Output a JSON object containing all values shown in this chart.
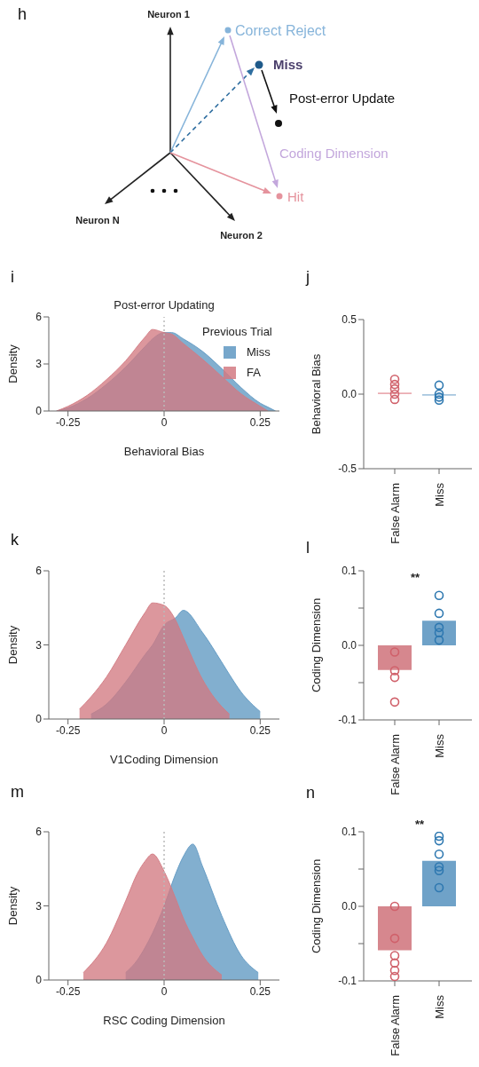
{
  "chart_data": [
    {
      "type": "other",
      "annotations": [
        "h",
        "Neuron 1",
        "Neuron 2",
        "Neuron N",
        "Correct Reject",
        "Miss",
        "Post-error Update",
        "Coding Dimension",
        "Hit"
      ]
    },
    {
      "type": "area",
      "title": "Post-error Updating",
      "xlabel": "Behavioral Bias",
      "ylabel": "Density",
      "legend_title": "Previous Trial",
      "annotations": [
        "i"
      ],
      "legend": "top right",
      "x": [
        -0.28,
        -0.25,
        -0.2,
        -0.15,
        -0.1,
        -0.05,
        -0.03,
        0,
        0.02,
        0.05,
        0.1,
        0.15,
        0.2,
        0.25,
        0.27,
        0.29
      ],
      "series": [
        {
          "name": "Miss",
          "color": "#5f98c2",
          "values": [
            0,
            0.2,
            0.8,
            1.7,
            2.8,
            4.1,
            4.6,
            5.0,
            5.0,
            4.6,
            3.8,
            2.7,
            1.5,
            0.5,
            0.25,
            0
          ]
        },
        {
          "name": "FA",
          "color": "#d27a82",
          "values": [
            0,
            0.3,
            1.0,
            2.0,
            3.2,
            4.7,
            5.2,
            5.0,
            4.9,
            4.3,
            3.3,
            2.2,
            1.1,
            0.3,
            0,
            null
          ]
        }
      ],
      "xlim": [
        -0.3,
        0.3
      ],
      "xticks": [
        -0.25,
        0,
        0.25
      ],
      "ylim": [
        0,
        6
      ],
      "yticks": [
        0,
        3,
        6
      ],
      "ref_lines": [
        {
          "axis": "x",
          "value": 0,
          "color": "#bbbbbb",
          "line_style": "dotted"
        }
      ]
    },
    {
      "type": "bar",
      "ylabel": "Behavioral Bias",
      "annotations": [
        "j"
      ],
      "categories": [
        "False Alarm",
        "Miss"
      ],
      "marker": "circle",
      "series": [
        {
          "type": "bar",
          "colors": [
            "#e8a3aa",
            "#9cc0dc"
          ],
          "values": [
            0.01,
            -0.01
          ]
        },
        {
          "type": "scatter",
          "color": "#d0606a",
          "x": [
            "False Alarm",
            "False Alarm",
            "False Alarm",
            "False Alarm",
            "False Alarm"
          ],
          "values": [
            0.1,
            0.065,
            0.035,
            0,
            -0.035
          ]
        },
        {
          "type": "scatter",
          "color": "#2e78b0",
          "x": [
            "Miss",
            "Miss",
            "Miss",
            "Miss"
          ],
          "values": [
            0.06,
            0,
            -0.02,
            -0.04
          ]
        }
      ],
      "ylim": [
        -0.5,
        0.5
      ],
      "yticks": [
        -0.5,
        {
          "value": 0,
          "label": "0.0"
        },
        0.5
      ]
    },
    {
      "type": "area",
      "xlabel": "V1Coding Dimension",
      "ylabel": "Density",
      "annotations": [
        "k"
      ],
      "x": [
        -0.22,
        -0.19,
        -0.15,
        -0.1,
        -0.05,
        -0.03,
        0,
        0.03,
        0.05,
        0.1,
        0.15,
        0.17,
        0.2,
        0.25
      ],
      "series": [
        {
          "color": "#5f98c2",
          "values": [
            null,
            0.2,
            0.6,
            1.5,
            2.6,
            3.0,
            3.8,
            4.1,
            4.4,
            3.5,
            2.3,
            1.8,
            1.1,
            0.3
          ]
        },
        {
          "color": "#d27a82",
          "values": [
            0.4,
            0.9,
            1.7,
            3.0,
            4.3,
            4.7,
            4.6,
            4.0,
            3.3,
            1.6,
            0.5,
            0.2,
            null,
            null
          ]
        }
      ],
      "xlim": [
        -0.3,
        0.3
      ],
      "xticks": [
        -0.25,
        0,
        0.25
      ],
      "ylim": [
        0,
        6
      ],
      "yticks": [
        0,
        3,
        6
      ],
      "ref_lines": [
        {
          "axis": "x",
          "value": 0,
          "color": "#bbbbbb",
          "line_style": "dotted"
        }
      ]
    },
    {
      "type": "bar",
      "ylabel": "Coding Dimension",
      "annotations": [
        "l",
        "**"
      ],
      "categories": [
        "False Alarm",
        "Miss"
      ],
      "marker": "circle",
      "series": [
        {
          "type": "bar",
          "colors": [
            "#d27a82",
            "#5f98c2"
          ],
          "values": [
            -0.033,
            0.033
          ]
        },
        {
          "type": "scatter",
          "color": "#d0606a",
          "x": [
            "False Alarm",
            "False Alarm",
            "False Alarm",
            "False Alarm"
          ],
          "values": [
            -0.009,
            -0.034,
            -0.043,
            -0.076
          ]
        },
        {
          "type": "scatter",
          "color": "#2e78b0",
          "x": [
            "Miss",
            "Miss",
            "Miss",
            "Miss",
            "Miss"
          ],
          "values": [
            0.067,
            0.043,
            0.024,
            0.017,
            0.007
          ]
        }
      ],
      "ylim": [
        -0.1,
        0.1
      ],
      "yticks": [
        -0.1,
        {
          "value": -0.05,
          "label": null
        },
        {
          "value": 0,
          "label": "0.0"
        },
        {
          "value": 0.05,
          "label": null
        },
        0.1
      ]
    },
    {
      "type": "area",
      "xlabel": "RSC Coding Dimension",
      "ylabel": "Density",
      "annotations": [
        "m"
      ],
      "x": [
        -0.21,
        -0.15,
        -0.1,
        -0.07,
        -0.05,
        -0.03,
        0,
        0.03,
        0.05,
        0.075,
        0.1,
        0.15,
        0.2,
        0.245
      ],
      "series": [
        {
          "color": "#5f98c2",
          "values": [
            null,
            null,
            0.3,
            0.8,
            1.3,
            1.9,
            3.0,
            4.3,
            5.0,
            5.5,
            4.6,
            2.6,
            1.0,
            0.3
          ]
        },
        {
          "color": "#d27a82",
          "values": [
            0.3,
            1.5,
            3.2,
            4.3,
            4.8,
            5.1,
            4.4,
            3.3,
            2.5,
            1.7,
            1.0,
            0.2,
            null,
            null
          ]
        }
      ],
      "xlim": [
        -0.3,
        0.3
      ],
      "xticks": [
        -0.25,
        0,
        0.25
      ],
      "ylim": [
        0,
        6
      ],
      "yticks": [
        0,
        3,
        6
      ],
      "ref_lines": [
        {
          "axis": "x",
          "value": 0,
          "color": "#bbbbbb",
          "line_style": "dotted"
        }
      ]
    },
    {
      "type": "bar",
      "ylabel": "Coding Dimension",
      "annotations": [
        "n",
        "**"
      ],
      "categories": [
        "False Alarm",
        "Miss"
      ],
      "marker": "circle",
      "series": [
        {
          "type": "bar",
          "colors": [
            "#d27a82",
            "#5f98c2"
          ],
          "values": [
            -0.059,
            0.061
          ]
        },
        {
          "type": "scatter",
          "color": "#d0606a",
          "x": [
            "False Alarm",
            "False Alarm",
            "False Alarm",
            "False Alarm",
            "False Alarm",
            "False Alarm"
          ],
          "values": [
            0,
            -0.043,
            -0.066,
            -0.076,
            -0.086,
            -0.094
          ]
        },
        {
          "type": "scatter",
          "color": "#2e78b0",
          "x": [
            "Miss",
            "Miss",
            "Miss",
            "Miss",
            "Miss",
            "Miss"
          ],
          "values": [
            0.094,
            0.088,
            0.07,
            0.053,
            0.048,
            0.025
          ]
        }
      ],
      "ylim": [
        -0.1,
        0.1
      ],
      "yticks": [
        -0.1,
        {
          "value": -0.05,
          "label": null
        },
        {
          "value": 0,
          "label": "0.0"
        },
        {
          "value": 0.05,
          "label": null
        },
        0.1
      ]
    }
  ]
}
